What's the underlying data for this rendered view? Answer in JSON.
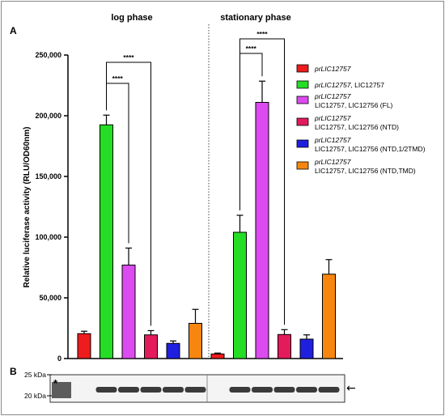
{
  "panels": {
    "a": "A",
    "b": "B"
  },
  "chart_data": {
    "type": "bar",
    "ylabel": "Relative luciferase activity (RLU/OD60nm)",
    "ylim": [
      0,
      250000
    ],
    "yticks": [
      0,
      50000,
      100000,
      150000,
      200000,
      250000
    ],
    "ytick_labels": [
      "0",
      "50,000",
      "100,000",
      "150,000",
      "200,000",
      "250,000"
    ],
    "groups": [
      {
        "title": "log phase",
        "values": [
          20500,
          192500,
          77000,
          19500,
          12500,
          29000
        ],
        "errors": [
          2000,
          8000,
          14000,
          3500,
          2000,
          11500
        ]
      },
      {
        "title": "stationary phase",
        "values": [
          3800,
          104000,
          211000,
          19800,
          16000,
          69500
        ],
        "errors": [
          700,
          14000,
          17500,
          4000,
          3500,
          12000
        ]
      }
    ],
    "series": [
      {
        "name_italic": "prLIC12757",
        "name_rest": "",
        "line2": "",
        "color": "#ee1c1c"
      },
      {
        "name_italic": "prLIC12757",
        "name_rest": ", LIC12757",
        "line2": "",
        "color": "#25dd25"
      },
      {
        "name_italic": "prLIC12757",
        "name_rest": "",
        "line2": "LIC12757, LIC12756 (FL)",
        "color": "#dc4bef"
      },
      {
        "name_italic": "prLIC12757",
        "name_rest": "",
        "line2": "LIC12757, LIC12756 (NTD)",
        "color": "#e31a5c"
      },
      {
        "name_italic": "prLIC12757",
        "name_rest": "",
        "line2": "LIC12757, LIC12756 (NTD,1/2TMD)",
        "color": "#1f1fe0"
      },
      {
        "name_italic": "prLIC12757",
        "name_rest": "",
        "line2": "LIC12757, LIC12756 (NTD,TMD)",
        "color": "#f6860f"
      }
    ],
    "significance": [
      {
        "group": 0,
        "from": 1,
        "to": 2,
        "label": "****",
        "level": 0
      },
      {
        "group": 0,
        "from": 1,
        "to": 3,
        "label": "****",
        "level": 1
      },
      {
        "group": 1,
        "from": 1,
        "to": 2,
        "label": "****",
        "level": 0
      },
      {
        "group": 1,
        "from": 1,
        "to": 3,
        "label": "****",
        "level": 1
      }
    ]
  },
  "blot": {
    "markers": [
      "25 kDa",
      "20 kDa"
    ],
    "asterisk": "*",
    "arrow": "←",
    "lane_bands": [
      0,
      1,
      1,
      1,
      1,
      1,
      0,
      1,
      1,
      1,
      1,
      1
    ]
  }
}
